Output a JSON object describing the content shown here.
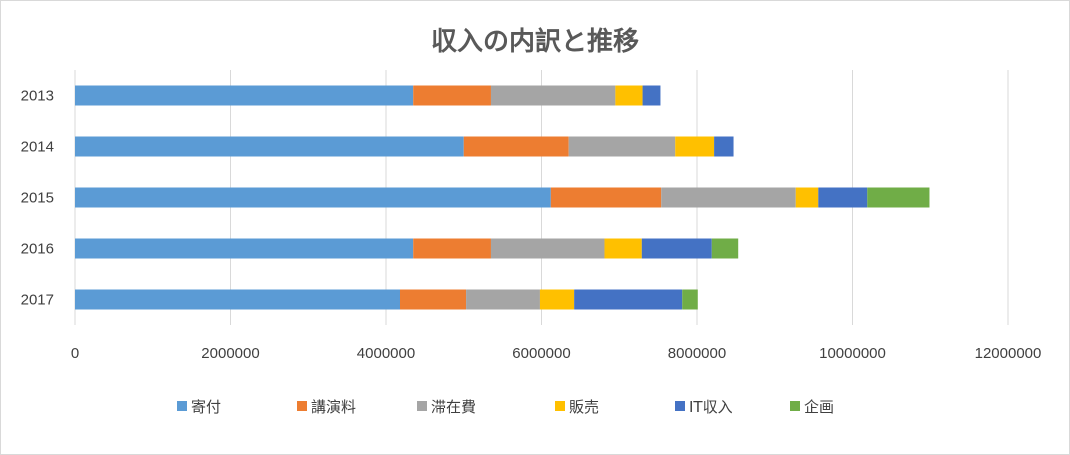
{
  "chart_data": {
    "type": "bar",
    "orientation": "horizontal",
    "stacked": true,
    "title": "収入の内訳と推移",
    "categories": [
      "2013",
      "2014",
      "2015",
      "2016",
      "2017"
    ],
    "series": [
      {
        "name": "寄付",
        "color": "#5B9BD5",
        "values": [
          4350000,
          5000000,
          6120000,
          4350000,
          4180000
        ]
      },
      {
        "name": "講演料",
        "color": "#ED7D31",
        "values": [
          1000000,
          1350000,
          1420000,
          1000000,
          850000
        ]
      },
      {
        "name": "滞在費",
        "color": "#A5A5A5",
        "values": [
          1600000,
          1370000,
          1730000,
          1460000,
          950000
        ]
      },
      {
        "name": "販売",
        "color": "#FFC000",
        "values": [
          350000,
          500000,
          290000,
          480000,
          440000
        ]
      },
      {
        "name": "IT収入",
        "color": "#4472C4",
        "values": [
          230000,
          250000,
          630000,
          900000,
          1390000
        ]
      },
      {
        "name": "企画",
        "color": "#70AD47",
        "values": [
          0,
          0,
          800000,
          340000,
          200000
        ]
      }
    ],
    "x_ticks": [
      "0",
      "2000000",
      "4000000",
      "6000000",
      "8000000",
      "10000000",
      "12000000"
    ],
    "xlim": [
      0,
      12000000
    ],
    "grid": true,
    "legend_position": "bottom"
  }
}
